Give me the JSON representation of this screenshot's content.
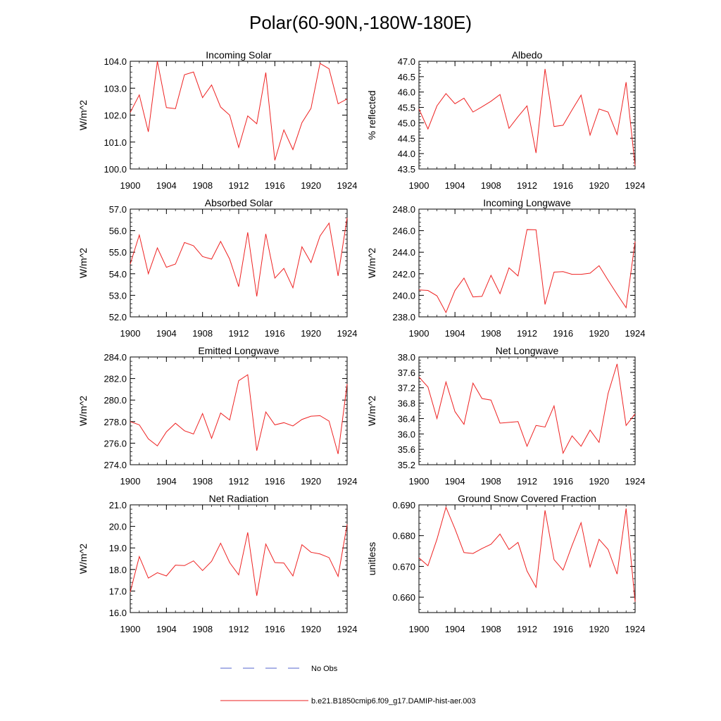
{
  "page": {
    "title": "Polar(60-90N,-180W-180E)"
  },
  "legend": {
    "obs_label": "No Obs",
    "obs_color": "#5566cc",
    "model_label": "b.e21.B1850cmip6.f09_g17.DAMIP-hist-aer.003",
    "model_color": "#ee2222"
  },
  "chart_data": [
    {
      "type": "line",
      "title": "Incoming Solar",
      "ylabel": "W/m^2",
      "xlim": [
        1900,
        1924
      ],
      "ylim": [
        100.0,
        104.0
      ],
      "yticks": [
        "100.0",
        "101.0",
        "102.0",
        "103.0",
        "104.0"
      ],
      "xticks": [
        "1900",
        "1904",
        "1908",
        "1912",
        "1916",
        "1920",
        "1924"
      ],
      "x": [
        1900,
        1901,
        1902,
        1903,
        1904,
        1905,
        1906,
        1907,
        1908,
        1909,
        1910,
        1911,
        1912,
        1913,
        1914,
        1915,
        1916,
        1917,
        1918,
        1919,
        1920,
        1921,
        1922,
        1923,
        1924
      ],
      "series": [
        {
          "values": [
            102.1,
            102.75,
            101.38,
            104.0,
            102.28,
            102.24,
            103.5,
            103.6,
            102.65,
            103.12,
            102.3,
            102.0,
            100.8,
            101.97,
            101.68,
            103.58,
            100.32,
            101.45,
            100.72,
            101.72,
            102.25,
            103.92,
            103.72,
            102.42,
            102.6
          ]
        }
      ]
    },
    {
      "type": "line",
      "title": "Albedo",
      "ylabel": "% reflected",
      "xlim": [
        1900,
        1924
      ],
      "ylim": [
        43.5,
        47.0
      ],
      "yticks": [
        "43.5",
        "44.0",
        "44.5",
        "45.0",
        "45.5",
        "46.0",
        "46.5",
        "47.0"
      ],
      "xticks": [
        "1900",
        "1904",
        "1908",
        "1912",
        "1916",
        "1920",
        "1924"
      ],
      "x": [
        1900,
        1901,
        1902,
        1903,
        1904,
        1905,
        1906,
        1907,
        1908,
        1909,
        1910,
        1911,
        1912,
        1913,
        1914,
        1915,
        1916,
        1917,
        1918,
        1919,
        1920,
        1921,
        1922,
        1923,
        1924
      ],
      "series": [
        {
          "values": [
            45.45,
            44.8,
            45.55,
            45.95,
            45.62,
            45.8,
            45.35,
            45.52,
            45.7,
            45.92,
            44.82,
            45.2,
            45.55,
            44.02,
            46.75,
            44.88,
            44.92,
            45.42,
            45.9,
            44.6,
            45.45,
            45.35,
            44.62,
            46.32,
            43.6
          ]
        }
      ]
    },
    {
      "type": "line",
      "title": "Absorbed Solar",
      "ylabel": "W/m^2",
      "xlim": [
        1900,
        1924
      ],
      "ylim": [
        52.0,
        57.0
      ],
      "yticks": [
        "52.0",
        "53.0",
        "54.0",
        "55.0",
        "56.0",
        "57.0"
      ],
      "xticks": [
        "1900",
        "1904",
        "1908",
        "1912",
        "1916",
        "1920",
        "1924"
      ],
      "x": [
        1900,
        1901,
        1902,
        1903,
        1904,
        1905,
        1906,
        1907,
        1908,
        1909,
        1910,
        1911,
        1912,
        1913,
        1914,
        1915,
        1916,
        1917,
        1918,
        1919,
        1920,
        1921,
        1922,
        1923,
        1924
      ],
      "series": [
        {
          "values": [
            54.45,
            55.8,
            54.0,
            55.2,
            54.3,
            54.45,
            55.45,
            55.3,
            54.8,
            54.68,
            55.5,
            54.68,
            53.4,
            55.92,
            52.95,
            55.85,
            53.8,
            54.25,
            53.35,
            55.25,
            54.52,
            55.75,
            56.35,
            53.9,
            56.6
          ]
        }
      ]
    },
    {
      "type": "line",
      "title": "Incoming Longwave",
      "ylabel": "W/m^2",
      "xlim": [
        1900,
        1924
      ],
      "ylim": [
        238.0,
        248.0
      ],
      "yticks": [
        "238.0",
        "240.0",
        "242.0",
        "244.0",
        "246.0",
        "248.0"
      ],
      "xticks": [
        "1900",
        "1904",
        "1908",
        "1912",
        "1916",
        "1920",
        "1924"
      ],
      "x": [
        1900,
        1901,
        1902,
        1903,
        1904,
        1905,
        1906,
        1907,
        1908,
        1909,
        1910,
        1911,
        1912,
        1913,
        1914,
        1915,
        1916,
        1917,
        1918,
        1919,
        1920,
        1921,
        1922,
        1923,
        1924
      ],
      "series": [
        {
          "values": [
            240.5,
            240.45,
            239.95,
            238.4,
            240.45,
            241.6,
            239.85,
            239.9,
            241.85,
            240.15,
            242.55,
            241.8,
            246.1,
            246.08,
            239.15,
            242.15,
            242.2,
            241.95,
            241.95,
            242.05,
            242.75,
            241.4,
            240.1,
            238.85,
            245.0
          ]
        }
      ]
    },
    {
      "type": "line",
      "title": "Emitted Longwave",
      "ylabel": "W/m^2",
      "xlim": [
        1900,
        1924
      ],
      "ylim": [
        274.0,
        284.0
      ],
      "yticks": [
        "274.0",
        "276.0",
        "278.0",
        "280.0",
        "282.0",
        "284.0"
      ],
      "xticks": [
        "1900",
        "1904",
        "1908",
        "1912",
        "1916",
        "1920",
        "1924"
      ],
      "x": [
        1900,
        1901,
        1902,
        1903,
        1904,
        1905,
        1906,
        1907,
        1908,
        1909,
        1910,
        1911,
        1912,
        1913,
        1914,
        1915,
        1916,
        1917,
        1918,
        1919,
        1920,
        1921,
        1922,
        1923,
        1924
      ],
      "series": [
        {
          "values": [
            278.0,
            277.7,
            276.4,
            275.75,
            277.05,
            277.85,
            277.15,
            276.85,
            278.75,
            276.45,
            278.8,
            278.15,
            281.8,
            282.35,
            275.3,
            278.9,
            277.7,
            277.9,
            277.6,
            278.2,
            278.5,
            278.55,
            278.05,
            275.0,
            281.5
          ]
        }
      ]
    },
    {
      "type": "line",
      "title": "Net Longwave",
      "ylabel": "W/m^2",
      "xlim": [
        1900,
        1924
      ],
      "ylim": [
        35.2,
        38.0
      ],
      "yticks": [
        "35.2",
        "35.6",
        "36.0",
        "36.4",
        "36.8",
        "37.2",
        "37.6",
        "38.0"
      ],
      "xticks": [
        "1900",
        "1904",
        "1908",
        "1912",
        "1916",
        "1920",
        "1924"
      ],
      "x": [
        1900,
        1901,
        1902,
        1903,
        1904,
        1905,
        1906,
        1907,
        1908,
        1909,
        1910,
        1911,
        1912,
        1913,
        1914,
        1915,
        1916,
        1917,
        1918,
        1919,
        1920,
        1921,
        1922,
        1923,
        1924
      ],
      "series": [
        {
          "values": [
            37.48,
            37.22,
            36.4,
            37.35,
            36.58,
            36.25,
            37.32,
            36.92,
            36.88,
            36.28,
            36.3,
            36.32,
            35.68,
            36.22,
            36.18,
            36.73,
            35.5,
            35.95,
            35.68,
            36.1,
            35.78,
            37.05,
            37.82,
            36.22,
            36.52
          ]
        }
      ]
    },
    {
      "type": "line",
      "title": "Net Radiation",
      "ylabel": "W/m^2",
      "xlim": [
        1900,
        1924
      ],
      "ylim": [
        16.0,
        21.0
      ],
      "yticks": [
        "16.0",
        "17.0",
        "18.0",
        "19.0",
        "20.0",
        "21.0"
      ],
      "xticks": [
        "1900",
        "1904",
        "1908",
        "1912",
        "1916",
        "1920",
        "1924"
      ],
      "x": [
        1900,
        1901,
        1902,
        1903,
        1904,
        1905,
        1906,
        1907,
        1908,
        1909,
        1910,
        1911,
        1912,
        1913,
        1914,
        1915,
        1916,
        1917,
        1918,
        1919,
        1920,
        1921,
        1922,
        1923,
        1924
      ],
      "series": [
        {
          "values": [
            16.95,
            18.6,
            17.6,
            17.85,
            17.7,
            18.2,
            18.18,
            18.4,
            17.95,
            18.38,
            19.22,
            18.32,
            17.75,
            19.72,
            16.78,
            19.18,
            18.32,
            18.3,
            17.7,
            19.15,
            18.8,
            18.72,
            18.55,
            17.68,
            20.1
          ]
        }
      ]
    },
    {
      "type": "line",
      "title": "Ground Snow Covered Fraction",
      "ylabel": "unitless",
      "xlim": [
        1900,
        1924
      ],
      "ylim": [
        0.655,
        0.69
      ],
      "yticks": [
        "0.660",
        "0.670",
        "0.680",
        "0.690"
      ],
      "ytick_values": [
        0.66,
        0.67,
        0.68,
        0.69
      ],
      "xticks": [
        "1900",
        "1904",
        "1908",
        "1912",
        "1916",
        "1920",
        "1924"
      ],
      "x": [
        1900,
        1901,
        1902,
        1903,
        1904,
        1905,
        1906,
        1907,
        1908,
        1909,
        1910,
        1911,
        1912,
        1913,
        1914,
        1915,
        1916,
        1917,
        1918,
        1919,
        1920,
        1921,
        1922,
        1923,
        1924
      ],
      "series": [
        {
          "values": [
            0.6728,
            0.6702,
            0.6788,
            0.6892,
            0.6822,
            0.6745,
            0.6742,
            0.6758,
            0.6772,
            0.6805,
            0.6755,
            0.6778,
            0.6685,
            0.6632,
            0.6882,
            0.6722,
            0.6688,
            0.6768,
            0.6842,
            0.6698,
            0.6788,
            0.6755,
            0.6675,
            0.6888,
            0.6585
          ]
        }
      ]
    }
  ]
}
